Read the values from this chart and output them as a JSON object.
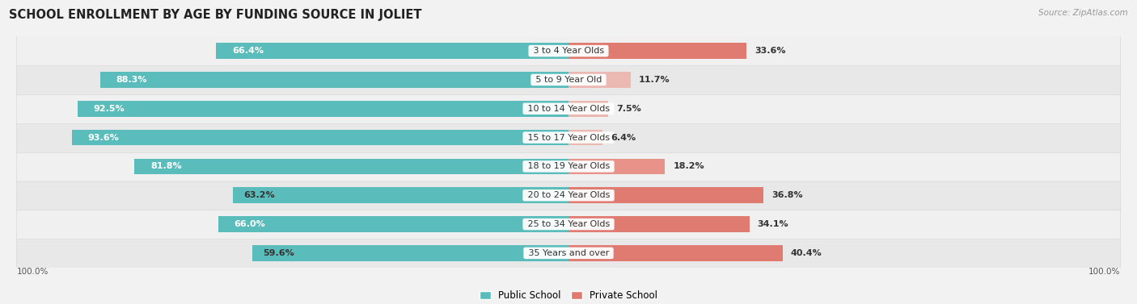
{
  "title": "SCHOOL ENROLLMENT BY AGE BY FUNDING SOURCE IN JOLIET",
  "source": "Source: ZipAtlas.com",
  "categories": [
    "3 to 4 Year Olds",
    "5 to 9 Year Old",
    "10 to 14 Year Olds",
    "15 to 17 Year Olds",
    "18 to 19 Year Olds",
    "20 to 24 Year Olds",
    "25 to 34 Year Olds",
    "35 Years and over"
  ],
  "public_values": [
    66.4,
    88.3,
    92.5,
    93.6,
    81.8,
    63.2,
    66.0,
    59.6
  ],
  "private_values": [
    33.6,
    11.7,
    7.5,
    6.4,
    18.2,
    36.8,
    34.1,
    40.4
  ],
  "public_color": "#5bbdbb",
  "private_color_strong": "#e07b72",
  "private_color_light": "#ebb8b2",
  "public_label": "Public School",
  "private_label": "Private School",
  "bg_color": "#f2f2f2",
  "axis_label_left": "100.0%",
  "axis_label_right": "100.0%",
  "title_fontsize": 10.5,
  "value_fontsize": 8,
  "category_fontsize": 8
}
